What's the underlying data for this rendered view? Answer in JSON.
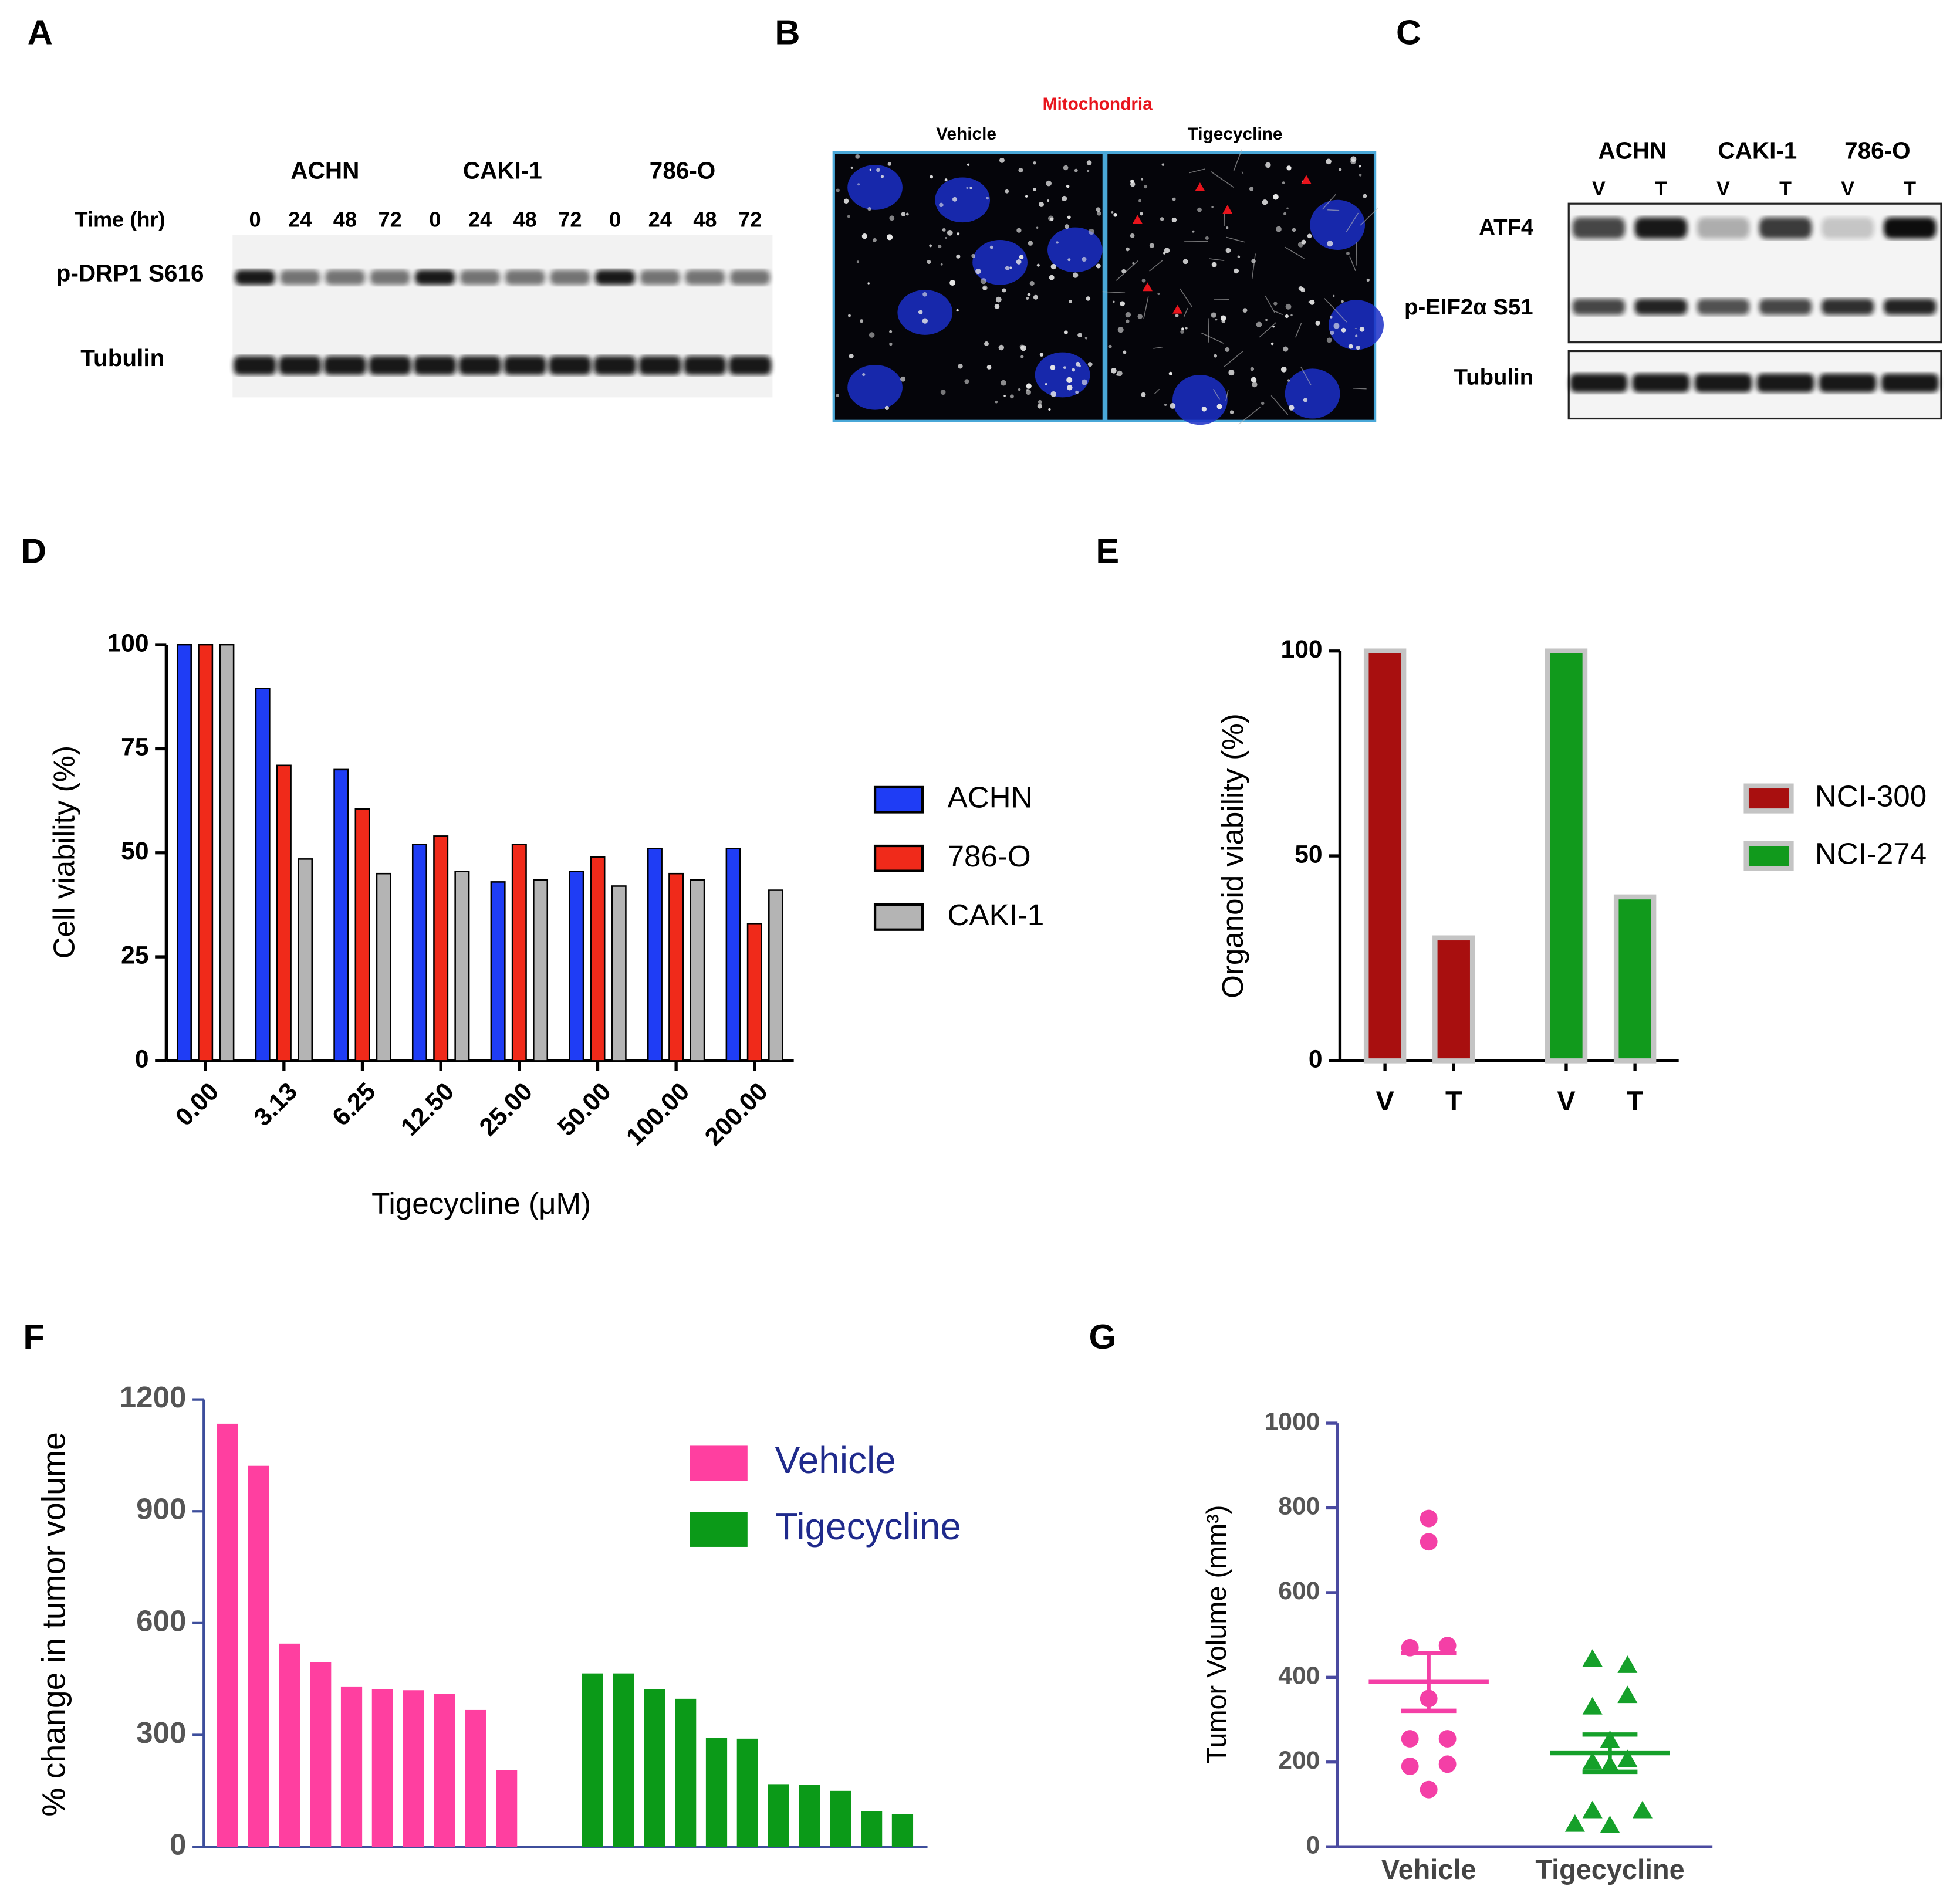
{
  "panel_labels": [
    "A",
    "B",
    "C",
    "D",
    "E",
    "F",
    "G"
  ],
  "blot_a": {
    "groups": [
      "ACHN",
      "CAKI-1",
      "786-O"
    ],
    "time_label": "Time (hr)",
    "time_points": [
      "0",
      "24",
      "48",
      "72",
      "0",
      "24",
      "48",
      "72",
      "0",
      "24",
      "48",
      "72"
    ],
    "rows": [
      "p-DRP1 S616",
      "Tubulin"
    ]
  },
  "image_b": {
    "title": "Mitochondria",
    "conditions": [
      "Vehicle",
      "Tigecycline"
    ]
  },
  "blot_c": {
    "groups": [
      "ACHN",
      "CAKI-1",
      "786-O"
    ],
    "lanes": [
      "V",
      "T",
      "V",
      "T",
      "V",
      "T"
    ],
    "rows": [
      "ATF4",
      "p-EIF2α S51",
      "Tubulin"
    ]
  },
  "chart_data": [
    {
      "type": "bar",
      "ylabel": "Cell viability (%)",
      "xlabel": "Tigecycline (μM)",
      "categories": [
        "0.00",
        "3.13",
        "6.25",
        "12.50",
        "25.00",
        "50.00",
        "100.00",
        "200.00"
      ],
      "series": [
        {
          "name": "ACHN",
          "color": "#1f3df5",
          "values": [
            100,
            89.5,
            70,
            52,
            43,
            45.5,
            51,
            51
          ]
        },
        {
          "name": "786-O",
          "color": "#f02a1a",
          "values": [
            100,
            71,
            60.5,
            54,
            52,
            49,
            45,
            33
          ]
        },
        {
          "name": "CAKI-1",
          "color": "#b4b4b4",
          "values": [
            100,
            48.5,
            45,
            45.5,
            43.5,
            42,
            43.5,
            41
          ]
        }
      ],
      "ylim": [
        0,
        100
      ],
      "yticks": [
        0,
        25,
        50,
        75,
        100
      ],
      "legend": "right"
    },
    {
      "type": "bar",
      "ylabel": "Organoid viability (%)",
      "categories": [
        "V",
        "T",
        "V",
        "T"
      ],
      "series": [
        {
          "name": "NCI-300",
          "color": "#a80f0f",
          "values": [
            100,
            30,
            null,
            null
          ]
        },
        {
          "name": "NCI-274",
          "color": "#119a1c",
          "values": [
            null,
            null,
            100,
            40
          ]
        }
      ],
      "ylim": [
        0,
        100
      ],
      "yticks": [
        0,
        50,
        100
      ],
      "legend": "right"
    },
    {
      "type": "bar",
      "ylabel": "% change in tumor volume",
      "series": [
        {
          "name": "Vehicle",
          "color": "#ff3fa0",
          "values": [
            1135,
            1022,
            545,
            495,
            430,
            423,
            420,
            410,
            367,
            205
          ]
        },
        {
          "name": "Tigecycline",
          "color": "#0b9a18",
          "values": [
            465,
            465,
            422,
            397,
            292,
            290,
            168,
            167,
            150,
            95,
            87
          ]
        }
      ],
      "ylim": [
        0,
        1200
      ],
      "yticks": [
        0,
        300,
        600,
        900,
        1200
      ],
      "legend": "upper right",
      "legend_text_color": "#1f2a8c"
    },
    {
      "type": "strip",
      "ylabel": "Tumor Volume (mm³)",
      "categories": [
        "Vehicle",
        "Tigecycline"
      ],
      "series": [
        {
          "color": "#f43fa6",
          "marker": "circle",
          "values": [
            775,
            720,
            470,
            475,
            350,
            255,
            255,
            195,
            190,
            135
          ],
          "mean": 389,
          "sem": 68
        },
        {
          "color": "#15a02a",
          "marker": "triangle",
          "values": [
            443,
            428,
            330,
            357,
            251,
            200,
            206,
            192,
            85,
            85,
            53,
            50
          ],
          "mean": 221,
          "sem": 44
        }
      ],
      "ylim": [
        0,
        1000
      ],
      "yticks": [
        0,
        200,
        400,
        600,
        800,
        1000
      ]
    }
  ]
}
